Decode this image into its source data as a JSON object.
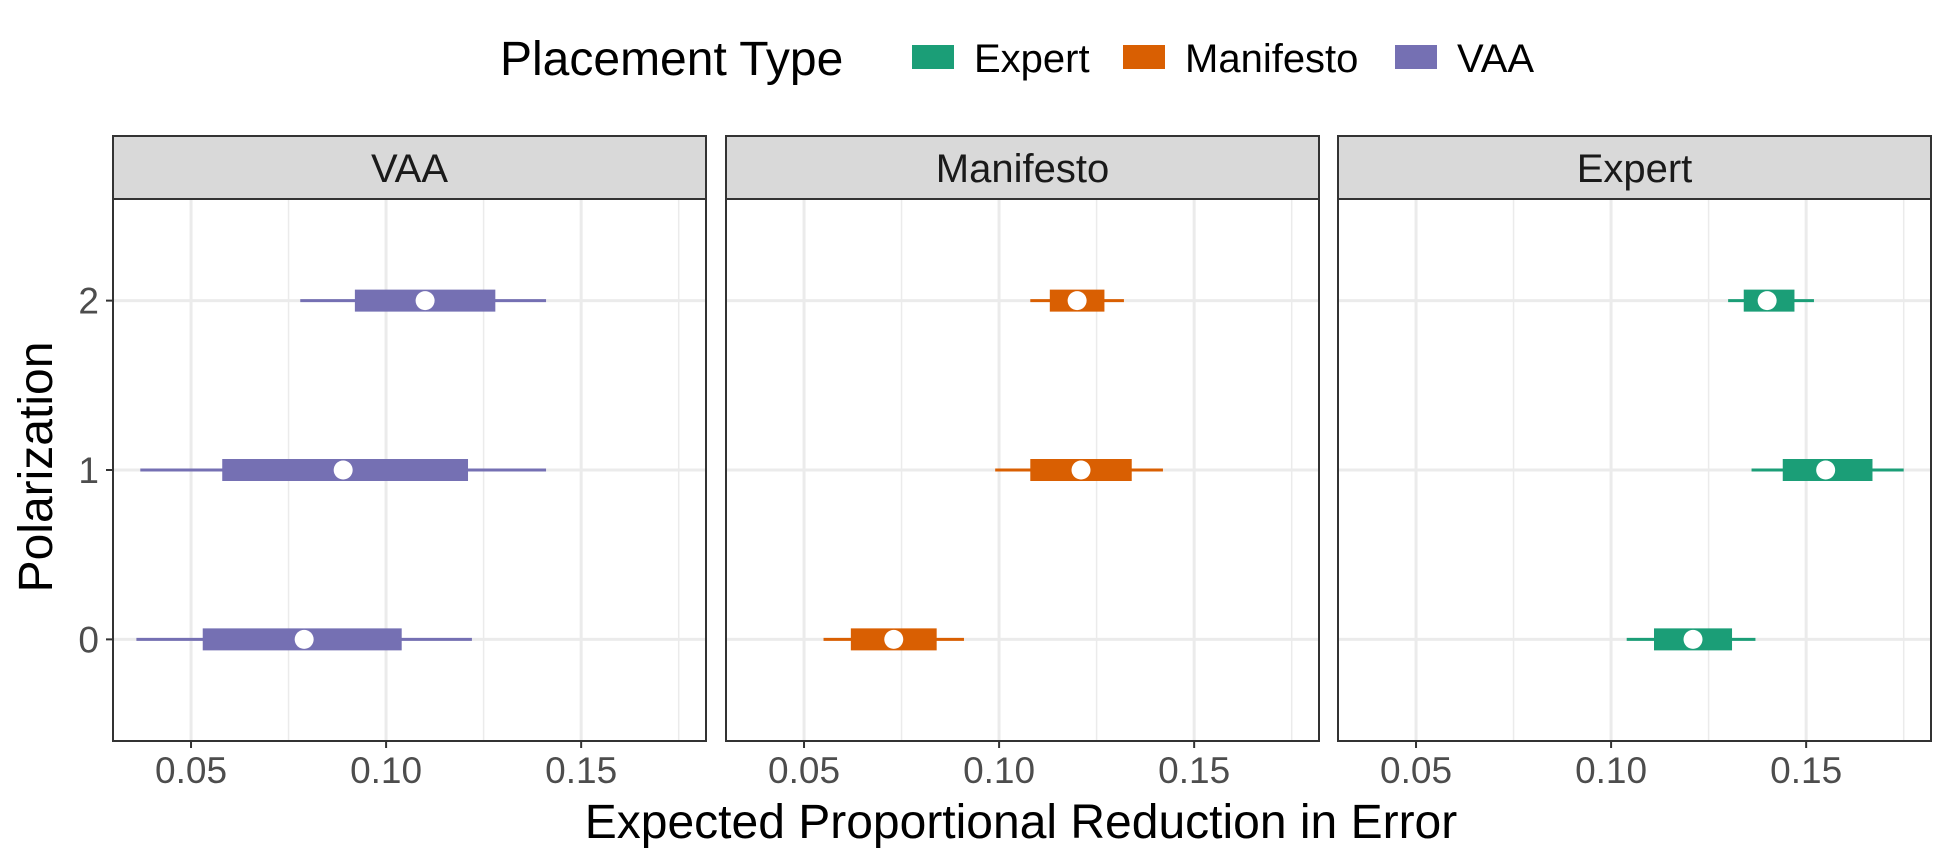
{
  "chart_data": {
    "type": "interval",
    "xlabel": "Expected Proportional Reduction in Error",
    "ylabel": "Polarization",
    "xlim": [
      0.03,
      0.182
    ],
    "x_ticks": [
      "0.05",
      "0.10",
      "0.15"
    ],
    "x_tick_values": [
      0.05,
      0.1,
      0.15
    ],
    "x_minor_values": [
      0.075,
      0.125,
      0.175
    ],
    "ylim": [
      -0.6,
      2.6
    ],
    "y_ticks": [
      "0",
      "1",
      "2"
    ],
    "y_tick_values": [
      0,
      1,
      2
    ],
    "legend": {
      "title": "Placement Type",
      "position": "top",
      "entries": [
        {
          "label": "Expert",
          "color": "#1b9e77"
        },
        {
          "label": "Manifesto",
          "color": "#d95f02"
        },
        {
          "label": "VAA",
          "color": "#7570b3"
        }
      ]
    },
    "panels": [
      {
        "title": "VAA",
        "color": "#7570b3",
        "points": [
          {
            "y": 2,
            "median": 0.11,
            "inner": [
              0.092,
              0.128
            ],
            "outer": [
              0.078,
              0.141
            ]
          },
          {
            "y": 1,
            "median": 0.089,
            "inner": [
              0.058,
              0.121
            ],
            "outer": [
              0.037,
              0.141
            ]
          },
          {
            "y": 0,
            "median": 0.079,
            "inner": [
              0.053,
              0.104
            ],
            "outer": [
              0.036,
              0.122
            ]
          }
        ]
      },
      {
        "title": "Manifesto",
        "color": "#d95f02",
        "points": [
          {
            "y": 2,
            "median": 0.12,
            "inner": [
              0.113,
              0.127
            ],
            "outer": [
              0.108,
              0.132
            ]
          },
          {
            "y": 1,
            "median": 0.121,
            "inner": [
              0.108,
              0.134
            ],
            "outer": [
              0.099,
              0.142
            ]
          },
          {
            "y": 0,
            "median": 0.073,
            "inner": [
              0.062,
              0.084
            ],
            "outer": [
              0.055,
              0.091
            ]
          }
        ]
      },
      {
        "title": "Expert",
        "color": "#1b9e77",
        "points": [
          {
            "y": 2,
            "median": 0.14,
            "inner": [
              0.134,
              0.147
            ],
            "outer": [
              0.13,
              0.152
            ]
          },
          {
            "y": 1,
            "median": 0.155,
            "inner": [
              0.144,
              0.167
            ],
            "outer": [
              0.136,
              0.175
            ]
          },
          {
            "y": 0,
            "median": 0.121,
            "inner": [
              0.111,
              0.131
            ],
            "outer": [
              0.104,
              0.137
            ]
          }
        ]
      }
    ]
  }
}
